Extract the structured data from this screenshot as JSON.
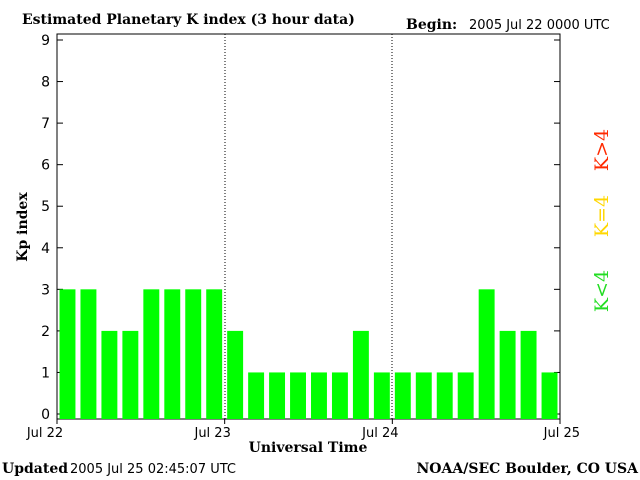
{
  "header": {
    "title": "Estimated Planetary K index (3 hour data)",
    "begin_label": "Begin:",
    "begin_value": "2005 Jul 22 0000 UTC"
  },
  "footer": {
    "updated_label": "Updated",
    "updated_value": "2005 Jul 25 02:45:07 UTC",
    "source": "NOAA/SEC Boulder, CO USA"
  },
  "legend": {
    "high": "K>4",
    "equal": "K=4",
    "low": "K<4"
  },
  "colors": {
    "bar": "#00ff00",
    "high": "#ff2a00",
    "equal": "#ffd700",
    "low": "#22dd22"
  },
  "chart_data": {
    "type": "bar",
    "title": "Estimated Planetary K index (3 hour data)",
    "xlabel": "Universal Time",
    "ylabel": "Kp index",
    "ylim": [
      0,
      9
    ],
    "yticks": [
      "0",
      "1",
      "2",
      "3",
      "4",
      "5",
      "6",
      "7",
      "8",
      "9"
    ],
    "xticks": [
      "Jul 22",
      "Jul 23",
      "Jul 24",
      "Jul 25"
    ],
    "categories": [
      "Jul 22 00",
      "Jul 22 03",
      "Jul 22 06",
      "Jul 22 09",
      "Jul 22 12",
      "Jul 22 15",
      "Jul 22 18",
      "Jul 22 21",
      "Jul 23 00",
      "Jul 23 03",
      "Jul 23 06",
      "Jul 23 09",
      "Jul 23 12",
      "Jul 23 15",
      "Jul 23 18",
      "Jul 23 21",
      "Jul 24 00",
      "Jul 24 03",
      "Jul 24 06",
      "Jul 24 09",
      "Jul 24 12",
      "Jul 24 15",
      "Jul 24 18",
      "Jul 24 21"
    ],
    "values": [
      3,
      3,
      2,
      2,
      3,
      3,
      3,
      3,
      2,
      1,
      1,
      1,
      1,
      1,
      2,
      1,
      1,
      1,
      1,
      1,
      3,
      2,
      2,
      1
    ]
  }
}
